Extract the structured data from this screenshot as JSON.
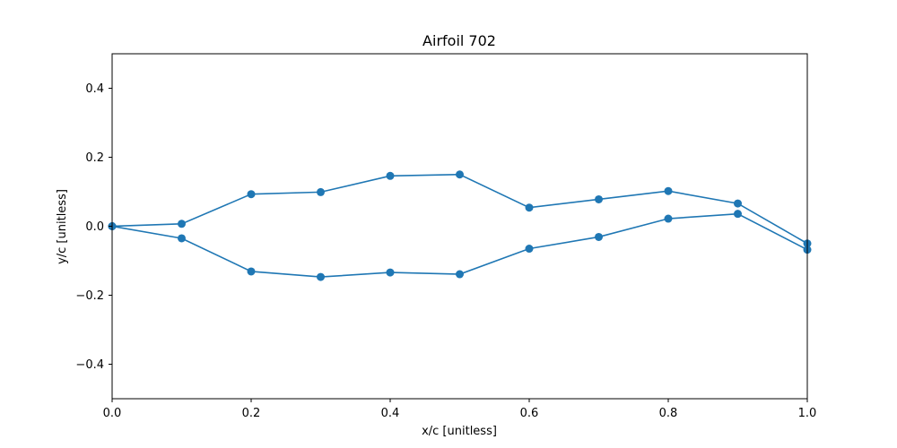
{
  "chart_data": {
    "type": "line",
    "title": "Airfoil 702",
    "xlabel": "x/c [unitless]",
    "ylabel": "y/c [unitless]",
    "xlim": [
      0.0,
      1.0
    ],
    "ylim": [
      -0.5,
      0.5
    ],
    "xticks": [
      "0.0",
      "0.2",
      "0.4",
      "0.6",
      "0.8",
      "1.0"
    ],
    "yticks": [
      "−0.4",
      "−0.2",
      "0.0",
      "0.2",
      "0.4"
    ],
    "grid": false,
    "color": "#1f77b4",
    "series": [
      {
        "x": [
          0.0,
          0.1,
          0.2,
          0.3,
          0.4,
          0.5,
          0.6,
          0.7,
          0.8,
          0.9,
          1.0
        ],
        "y": [
          0.0,
          0.007,
          0.093,
          0.099,
          0.146,
          0.15,
          0.054,
          0.078,
          0.102,
          0.066,
          -0.05
        ]
      },
      {
        "x": [
          0.0,
          0.1,
          0.2,
          0.3,
          0.4,
          0.5,
          0.6,
          0.7,
          0.8,
          0.9,
          1.0
        ],
        "y": [
          0.0,
          -0.035,
          -0.131,
          -0.147,
          -0.134,
          -0.139,
          -0.065,
          -0.031,
          0.022,
          0.036,
          -0.068
        ]
      }
    ]
  }
}
